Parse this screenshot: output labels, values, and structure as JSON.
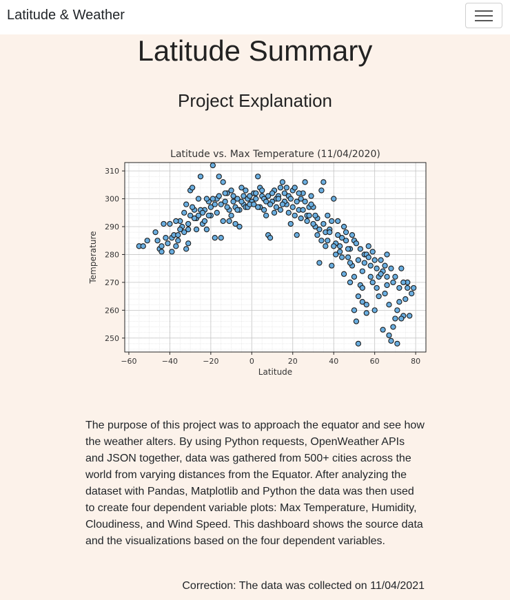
{
  "navbar": {
    "brand": "Latitude & Weather",
    "toggle_icon": "hamburger-menu-icon"
  },
  "page": {
    "title": "Latitude Summary",
    "section_title": "Project Explanation",
    "description": "The purpose of this project was to approach the equator and see how the weather alters. By using Python requests, OpenWeather APIs and JSON together, data was gathered from 500+ cities across the world from varying distances from the Equator. After analyzing the dataset with Pandas, Matplotlib and Python the data was then used to create four dependent variable plots: Max Temperature, Humidity, Cloudiness, and Wind Speed. This dashboard shows the source data and the visualizations based on the four dependent variables.",
    "correction": "Correction: The data was collected on 11/04/2021"
  },
  "chart_data": {
    "type": "scatter",
    "title": "Latitude vs. Max Temperature (11/04/2020)",
    "xlabel": "Latitude",
    "ylabel": "Temperature",
    "xlim": [
      -62,
      85
    ],
    "ylim": [
      245,
      313
    ],
    "xticks": [
      -60,
      -40,
      -20,
      0,
      20,
      40,
      60,
      80
    ],
    "yticks": [
      250,
      260,
      270,
      280,
      290,
      300,
      310
    ],
    "xtick_labels": [
      "−60",
      "−40",
      "−20",
      "0",
      "20",
      "40",
      "60",
      "80"
    ],
    "ytick_labels": [
      "250",
      "260",
      "270",
      "280",
      "290",
      "300",
      "310"
    ],
    "grid": true,
    "marker_color": "#6aaee0",
    "edge_color": "#1a1a1a",
    "points": [
      [
        -55,
        283
      ],
      [
        -53,
        283
      ],
      [
        -51,
        285
      ],
      [
        -46,
        285
      ],
      [
        -45,
        282
      ],
      [
        -44,
        281
      ],
      [
        -43,
        291
      ],
      [
        -42,
        286
      ],
      [
        -41,
        284
      ],
      [
        -40,
        291
      ],
      [
        -39,
        286
      ],
      [
        -38,
        287
      ],
      [
        -37,
        283
      ],
      [
        -36,
        285
      ],
      [
        -35,
        292
      ],
      [
        -34,
        290
      ],
      [
        -33,
        288
      ],
      [
        -32,
        282
      ],
      [
        -31,
        284
      ],
      [
        -31,
        291
      ],
      [
        -30,
        303
      ],
      [
        -29,
        304
      ],
      [
        -28,
        296
      ],
      [
        -27,
        293
      ],
      [
        -26,
        294
      ],
      [
        -25,
        308
      ],
      [
        -24,
        291
      ],
      [
        -23,
        296
      ],
      [
        -22,
        289
      ],
      [
        -21,
        299
      ],
      [
        -20,
        297
      ],
      [
        -19,
        312
      ],
      [
        -18,
        286
      ],
      [
        -17,
        300
      ],
      [
        -16,
        308
      ],
      [
        -15,
        286
      ],
      [
        -14,
        306
      ],
      [
        -13,
        299
      ],
      [
        -12,
        302
      ],
      [
        -11,
        296
      ],
      [
        -10,
        303
      ],
      [
        -9,
        299
      ],
      [
        -8,
        291
      ],
      [
        -7,
        300
      ],
      [
        -6,
        290
      ],
      [
        -5,
        304
      ],
      [
        -4,
        298
      ],
      [
        -3,
        297
      ],
      [
        -2,
        300
      ],
      [
        -1,
        301
      ],
      [
        0,
        299
      ],
      [
        1,
        302
      ],
      [
        2,
        300
      ],
      [
        3,
        308
      ],
      [
        4,
        297
      ],
      [
        5,
        301
      ],
      [
        6,
        300
      ],
      [
        7,
        294
      ],
      [
        8,
        287
      ],
      [
        9,
        286
      ],
      [
        10,
        299
      ],
      [
        11,
        303
      ],
      [
        12,
        300
      ],
      [
        13,
        301
      ],
      [
        14,
        296
      ],
      [
        15,
        306
      ],
      [
        16,
        302
      ],
      [
        17,
        298
      ],
      [
        18,
        295
      ],
      [
        19,
        291
      ],
      [
        20,
        303
      ],
      [
        21,
        304
      ],
      [
        22,
        287
      ],
      [
        23,
        296
      ],
      [
        24,
        300
      ],
      [
        25,
        302
      ],
      [
        26,
        306
      ],
      [
        27,
        294
      ],
      [
        28,
        297
      ],
      [
        29,
        301
      ],
      [
        30,
        297
      ],
      [
        31,
        290
      ],
      [
        32,
        293
      ],
      [
        33,
        277
      ],
      [
        34,
        303
      ],
      [
        35,
        306
      ],
      [
        36,
        288
      ],
      [
        37,
        294
      ],
      [
        38,
        289
      ],
      [
        39,
        276
      ],
      [
        40,
        300
      ],
      [
        41,
        284
      ],
      [
        42,
        292
      ],
      [
        43,
        281
      ],
      [
        44,
        286
      ],
      [
        45,
        273
      ],
      [
        46,
        288
      ],
      [
        47,
        279
      ],
      [
        48,
        282
      ],
      [
        49,
        276
      ],
      [
        50,
        260
      ],
      [
        51,
        256
      ],
      [
        52,
        248
      ],
      [
        53,
        269
      ],
      [
        54,
        263
      ],
      [
        55,
        280
      ],
      [
        56,
        259
      ],
      [
        57,
        283
      ],
      [
        58,
        276
      ],
      [
        59,
        270
      ],
      [
        60,
        260
      ],
      [
        61,
        275
      ],
      [
        62,
        272
      ],
      [
        63,
        278
      ],
      [
        64,
        253
      ],
      [
        65,
        266
      ],
      [
        66,
        272
      ],
      [
        67,
        251
      ],
      [
        68,
        249
      ],
      [
        69,
        254
      ],
      [
        70,
        257
      ],
      [
        71,
        248
      ],
      [
        72,
        268
      ],
      [
        73,
        275
      ],
      [
        74,
        258
      ],
      [
        75,
        264
      ],
      [
        76,
        270
      ],
      [
        77,
        258
      ],
      [
        78,
        266
      ],
      [
        79,
        268
      ],
      [
        -47,
        288
      ],
      [
        -44,
        283
      ],
      [
        -39,
        281
      ],
      [
        -36,
        287
      ],
      [
        -33,
        295
      ],
      [
        -31,
        289
      ],
      [
        -29,
        297
      ],
      [
        -27,
        289
      ],
      [
        -25,
        296
      ],
      [
        -23,
        292
      ],
      [
        -22,
        300
      ],
      [
        -20,
        294
      ],
      [
        -18,
        298
      ],
      [
        -16,
        301
      ],
      [
        -14,
        292
      ],
      [
        -12,
        297
      ],
      [
        -10,
        294
      ],
      [
        -8,
        297
      ],
      [
        -6,
        296
      ],
      [
        -4,
        301
      ],
      [
        -2,
        297
      ],
      [
        2,
        302
      ],
      [
        4,
        304
      ],
      [
        6,
        296
      ],
      [
        8,
        301
      ],
      [
        10,
        302
      ],
      [
        12,
        297
      ],
      [
        14,
        304
      ],
      [
        16,
        299
      ],
      [
        18,
        301
      ],
      [
        20,
        297
      ],
      [
        22,
        299
      ],
      [
        24,
        293
      ],
      [
        26,
        299
      ],
      [
        28,
        294
      ],
      [
        30,
        291
      ],
      [
        32,
        287
      ],
      [
        34,
        285
      ],
      [
        36,
        283
      ],
      [
        38,
        288
      ],
      [
        40,
        283
      ],
      [
        42,
        287
      ],
      [
        44,
        279
      ],
      [
        46,
        285
      ],
      [
        48,
        277
      ],
      [
        50,
        285
      ],
      [
        52,
        278
      ],
      [
        54,
        274
      ],
      [
        56,
        280
      ],
      [
        58,
        272
      ],
      [
        60,
        278
      ],
      [
        62,
        265
      ],
      [
        64,
        274
      ],
      [
        66,
        269
      ],
      [
        68,
        275
      ],
      [
        70,
        272
      ],
      [
        72,
        263
      ],
      [
        74,
        270
      ],
      [
        76,
        268
      ],
      [
        66,
        280
      ],
      [
        -37,
        292
      ],
      [
        -35,
        289
      ],
      [
        -32,
        298
      ],
      [
        -30,
        294
      ],
      [
        -28,
        293
      ],
      [
        -26,
        300
      ],
      [
        -24,
        295
      ],
      [
        -21,
        294
      ],
      [
        -19,
        300
      ],
      [
        -17,
        295
      ],
      [
        -15,
        298
      ],
      [
        -13,
        302
      ],
      [
        -11,
        292
      ],
      [
        -9,
        301
      ],
      [
        -7,
        296
      ],
      [
        -5,
        299
      ],
      [
        -3,
        303
      ],
      [
        -1,
        298
      ],
      [
        1,
        298
      ],
      [
        3,
        297
      ],
      [
        5,
        303
      ],
      [
        7,
        299
      ],
      [
        9,
        298
      ],
      [
        11,
        295
      ],
      [
        13,
        300
      ],
      [
        15,
        298
      ],
      [
        17,
        304
      ],
      [
        19,
        300
      ],
      [
        21,
        294
      ],
      [
        23,
        302
      ],
      [
        25,
        296
      ],
      [
        27,
        292
      ],
      [
        29,
        298
      ],
      [
        31,
        294
      ],
      [
        33,
        289
      ],
      [
        35,
        291
      ],
      [
        37,
        285
      ],
      [
        39,
        292
      ],
      [
        41,
        280
      ],
      [
        43,
        283
      ],
      [
        45,
        290
      ],
      [
        47,
        282
      ],
      [
        49,
        287
      ],
      [
        51,
        284
      ],
      [
        53,
        282
      ],
      [
        55,
        277
      ],
      [
        57,
        279
      ],
      [
        59,
        281
      ],
      [
        61,
        268
      ],
      [
        63,
        273
      ],
      [
        65,
        276
      ],
      [
        67,
        262
      ],
      [
        69,
        270
      ],
      [
        71,
        260
      ],
      [
        73,
        257
      ],
      [
        52,
        265
      ],
      [
        50,
        272
      ],
      [
        54,
        268
      ],
      [
        48,
        270
      ],
      [
        56,
        262
      ]
    ]
  }
}
